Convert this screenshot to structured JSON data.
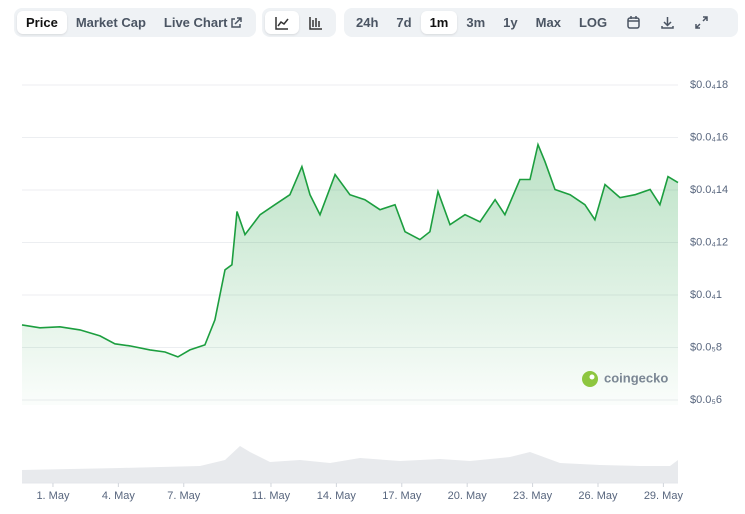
{
  "toolbar": {
    "views": [
      "Price",
      "Market Cap",
      "Live Chart"
    ],
    "ranges": [
      "24h",
      "7d",
      "1m",
      "3m",
      "1y",
      "Max",
      "LOG"
    ]
  },
  "watermark": "coingecko",
  "chart_data": {
    "type": "area",
    "color": "#1c9e3f",
    "x": [
      -0.42,
      0.4,
      1.32,
      2.24,
      3.16,
      3.84,
      4.53,
      5.45,
      6.14,
      6.73,
      7.28,
      7.97,
      8.43,
      8.89,
      9.21,
      9.44,
      9.81,
      10.5,
      11.18,
      11.87,
      12.42,
      12.79,
      13.25,
      13.94,
      14.62,
      15.31,
      16.0,
      16.69,
      17.15,
      17.83,
      18.29,
      18.66,
      19.21,
      19.9,
      20.59,
      21.28,
      21.73,
      22.42,
      22.88,
      23.25,
      23.57,
      24.03,
      24.72,
      25.4,
      25.86,
      26.32,
      27.01,
      27.7,
      28.39,
      28.84,
      29.21,
      29.67
    ],
    "values": [
      8.86e-06,
      8.75e-06,
      8.79e-06,
      8.67e-06,
      8.44e-06,
      8.14e-06,
      8.06e-06,
      7.91e-06,
      7.83e-06,
      7.64e-06,
      7.91e-06,
      8.1e-06,
      9.05e-06,
      1.096e-05,
      1.115e-05,
      1.318e-05,
      1.23e-05,
      1.306e-05,
      1.344e-05,
      1.382e-05,
      1.489e-05,
      1.382e-05,
      1.306e-05,
      1.459e-05,
      1.382e-05,
      1.363e-05,
      1.325e-05,
      1.344e-05,
      1.241e-05,
      1.211e-05,
      1.241e-05,
      1.394e-05,
      1.268e-05,
      1.306e-05,
      1.279e-05,
      1.363e-05,
      1.306e-05,
      1.44e-05,
      1.44e-05,
      1.573e-05,
      1.508e-05,
      1.402e-05,
      1.382e-05,
      1.344e-05,
      1.287e-05,
      1.421e-05,
      1.371e-05,
      1.382e-05,
      1.402e-05,
      1.344e-05,
      1.451e-05,
      1.428e-05
    ],
    "xlim": [
      -0.42,
      29.67
    ],
    "xticks": [
      {
        "value": 1,
        "label": "1. May"
      },
      {
        "value": 4,
        "label": "4. May"
      },
      {
        "value": 7,
        "label": "7. May"
      },
      {
        "value": 11,
        "label": "11. May"
      },
      {
        "value": 14,
        "label": "14. May"
      },
      {
        "value": 17,
        "label": "17. May"
      },
      {
        "value": 20,
        "label": "20. May"
      },
      {
        "value": 23,
        "label": "23. May"
      },
      {
        "value": 26,
        "label": "26. May"
      },
      {
        "value": 29,
        "label": "29. May"
      }
    ],
    "ylim": [
      6e-06,
      1.8e-05
    ],
    "yticks": [
      {
        "value": 1.8e-05,
        "label": "$0.0₄18"
      },
      {
        "value": 1.6e-05,
        "label": "$0.0₄16"
      },
      {
        "value": 1.4e-05,
        "label": "$0.0₄14"
      },
      {
        "value": 1.2e-05,
        "label": "$0.0₄12"
      },
      {
        "value": 1e-05,
        "label": "$0.0₄1"
      },
      {
        "value": 8e-06,
        "label": "$0.0₅8"
      },
      {
        "value": 6e-06,
        "label": "$0.0₅6"
      }
    ],
    "grid": true
  }
}
